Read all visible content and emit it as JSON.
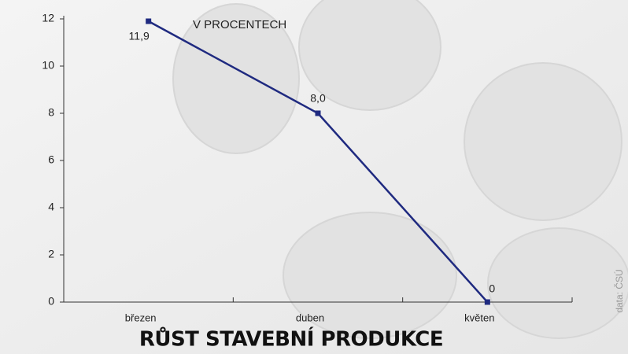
{
  "chart_data": {
    "type": "line",
    "title": "RŮST STAVEBNÍ PRODUKCE",
    "subtitle": "V PROCENTECH",
    "source": "data: ČSÚ",
    "categories": [
      "březen",
      "duben",
      "květen"
    ],
    "values": [
      11.9,
      8.0,
      0
    ],
    "value_labels": [
      "11,9",
      "8,0",
      "0"
    ],
    "color": "#1f2a80",
    "ylim": [
      0,
      12
    ],
    "yticks": [
      0,
      2,
      4,
      6,
      8,
      10,
      12
    ]
  }
}
